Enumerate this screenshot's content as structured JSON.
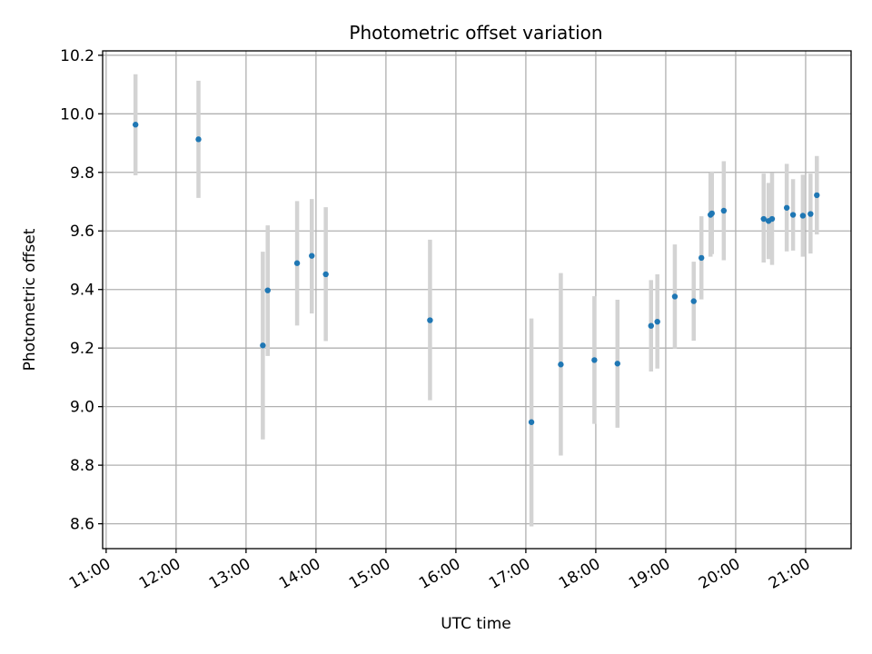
{
  "chart_data": {
    "type": "scatter",
    "title": "Photometric offset variation",
    "xlabel": "UTC time",
    "ylabel": "Photometric offset",
    "x_unit": "hours UTC",
    "xlim": [
      10.95,
      21.65
    ],
    "ylim": [
      8.515,
      10.215
    ],
    "grid": true,
    "x_ticks": [
      {
        "value": 11,
        "label": "11:00"
      },
      {
        "value": 12,
        "label": "12:00"
      },
      {
        "value": 13,
        "label": "13:00"
      },
      {
        "value": 14,
        "label": "14:00"
      },
      {
        "value": 15,
        "label": "15:00"
      },
      {
        "value": 16,
        "label": "16:00"
      },
      {
        "value": 17,
        "label": "17:00"
      },
      {
        "value": 18,
        "label": "18:00"
      },
      {
        "value": 19,
        "label": "19:00"
      },
      {
        "value": 20,
        "label": "20:00"
      },
      {
        "value": 21,
        "label": "21:00"
      }
    ],
    "y_ticks": [
      {
        "value": 8.6,
        "label": "8.6"
      },
      {
        "value": 8.8,
        "label": "8.8"
      },
      {
        "value": 9.0,
        "label": "9.0"
      },
      {
        "value": 9.2,
        "label": "9.2"
      },
      {
        "value": 9.4,
        "label": "9.4"
      },
      {
        "value": 9.6,
        "label": "9.6"
      },
      {
        "value": 9.8,
        "label": "9.8"
      },
      {
        "value": 10.0,
        "label": "10.0"
      },
      {
        "value": 10.2,
        "label": "10.2"
      }
    ],
    "colors": {
      "point": "#1f77b4",
      "errorbar": "#d3d3d3",
      "grid": "#b0b0b0"
    },
    "points": [
      {
        "x": 11.42,
        "y": 9.963,
        "lo": 9.79,
        "hi": 10.135
      },
      {
        "x": 12.32,
        "y": 9.913,
        "lo": 9.713,
        "hi": 10.113
      },
      {
        "x": 13.24,
        "y": 9.209,
        "lo": 8.888,
        "hi": 9.529
      },
      {
        "x": 13.31,
        "y": 9.397,
        "lo": 9.173,
        "hi": 9.619
      },
      {
        "x": 13.73,
        "y": 9.49,
        "lo": 9.277,
        "hi": 9.702
      },
      {
        "x": 13.94,
        "y": 9.515,
        "lo": 9.318,
        "hi": 9.709
      },
      {
        "x": 14.14,
        "y": 9.452,
        "lo": 9.224,
        "hi": 9.681
      },
      {
        "x": 15.63,
        "y": 9.295,
        "lo": 9.022,
        "hi": 9.57
      },
      {
        "x": 17.08,
        "y": 8.947,
        "lo": 8.591,
        "hi": 9.301
      },
      {
        "x": 17.5,
        "y": 9.144,
        "lo": 8.833,
        "hi": 9.456
      },
      {
        "x": 17.98,
        "y": 9.159,
        "lo": 8.941,
        "hi": 9.377
      },
      {
        "x": 18.31,
        "y": 9.147,
        "lo": 8.928,
        "hi": 9.365
      },
      {
        "x": 18.79,
        "y": 9.276,
        "lo": 9.12,
        "hi": 9.432
      },
      {
        "x": 18.88,
        "y": 9.29,
        "lo": 9.13,
        "hi": 9.452
      },
      {
        "x": 19.13,
        "y": 9.376,
        "lo": 9.198,
        "hi": 9.554
      },
      {
        "x": 19.4,
        "y": 9.36,
        "lo": 9.225,
        "hi": 9.495
      },
      {
        "x": 19.51,
        "y": 9.508,
        "lo": 9.366,
        "hi": 9.65
      },
      {
        "x": 19.64,
        "y": 9.655,
        "lo": 9.512,
        "hi": 9.798
      },
      {
        "x": 19.66,
        "y": 9.66,
        "lo": 9.521,
        "hi": 9.803
      },
      {
        "x": 19.83,
        "y": 9.669,
        "lo": 9.5,
        "hi": 9.838
      },
      {
        "x": 20.4,
        "y": 9.641,
        "lo": 9.492,
        "hi": 9.796
      },
      {
        "x": 20.47,
        "y": 9.634,
        "lo": 9.504,
        "hi": 9.764
      },
      {
        "x": 20.52,
        "y": 9.641,
        "lo": 9.484,
        "hi": 9.798
      },
      {
        "x": 20.73,
        "y": 9.679,
        "lo": 9.53,
        "hi": 9.829
      },
      {
        "x": 20.82,
        "y": 9.655,
        "lo": 9.533,
        "hi": 9.777
      },
      {
        "x": 20.96,
        "y": 9.652,
        "lo": 9.512,
        "hi": 9.792
      },
      {
        "x": 21.07,
        "y": 9.658,
        "lo": 9.523,
        "hi": 9.796
      },
      {
        "x": 21.16,
        "y": 9.722,
        "lo": 9.588,
        "hi": 9.856
      }
    ]
  }
}
